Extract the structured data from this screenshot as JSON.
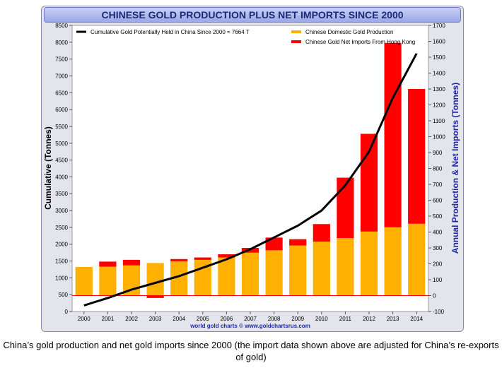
{
  "caption": "China’s gold production and net gold imports since 2000 (the import data shown above are adjusted for China’s re-exports of gold)",
  "chart_data": {
    "type": "bar",
    "title": "CHINESE GOLD PRODUCTION PLUS NET IMPORTS SINCE 2000",
    "source": "world gold charts © www.goldchartsrus.com",
    "categories": [
      "2000",
      "2001",
      "2002",
      "2003",
      "2004",
      "2005",
      "2006",
      "2007",
      "2008",
      "2009",
      "2010",
      "2011",
      "2012",
      "2013",
      "2014"
    ],
    "left_axis": {
      "label": "Cumulative (Tonnes)",
      "range": [
        0,
        8500
      ],
      "ticks": [
        0,
        500,
        1000,
        1500,
        2000,
        2500,
        3000,
        3500,
        4000,
        4500,
        5000,
        5500,
        6000,
        6500,
        7000,
        7500,
        8000,
        8500
      ]
    },
    "right_axis": {
      "label": "Annual Production & Net Imports (Tonnes)",
      "range": [
        -100,
        1700
      ],
      "ticks": [
        -100,
        0,
        100,
        200,
        300,
        400,
        500,
        600,
        700,
        800,
        900,
        1000,
        1100,
        1200,
        1300,
        1400,
        1500,
        1600,
        1700
      ]
    },
    "stacked": true,
    "series": [
      {
        "name": "Chinese Domestic Gold Production",
        "axis": "right",
        "kind": "bar",
        "color": "#ffb000",
        "values": [
          180,
          182,
          190,
          205,
          215,
          225,
          240,
          270,
          285,
          315,
          340,
          362,
          403,
          430,
          452
        ]
      },
      {
        "name": "Chinese Gold Net Imports From Hong Kong",
        "axis": "right",
        "kind": "bar",
        "color": "#ff0000",
        "values": [
          0,
          32,
          35,
          -15,
          15,
          15,
          20,
          30,
          80,
          40,
          110,
          380,
          615,
          1160,
          848
        ]
      },
      {
        "name": "Cumulative Gold Potentially Held in China Since 2000 = 7664 T",
        "axis": "left",
        "kind": "line",
        "color": "#000000",
        "values": [
          180,
          400,
          650,
          850,
          1050,
          1300,
          1550,
          1850,
          2200,
          2550,
          3000,
          3750,
          4750,
          6350,
          7664
        ]
      }
    ],
    "legend_position": "top",
    "grid": false
  }
}
